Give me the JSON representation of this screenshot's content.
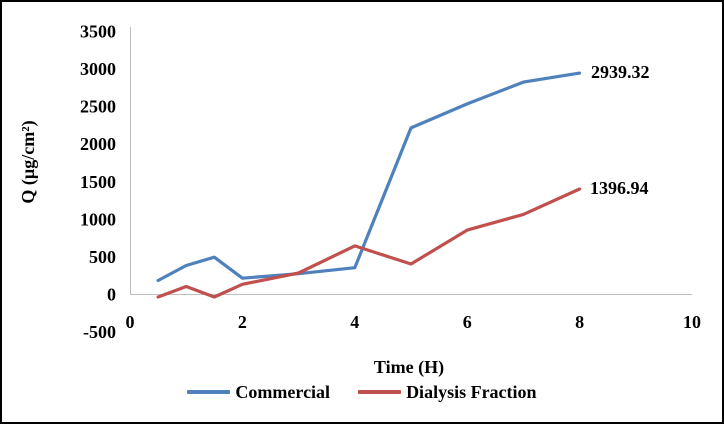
{
  "figure": {
    "background": "#ffffff",
    "border_color": "#000000"
  },
  "chart_data": {
    "type": "line",
    "title": "",
    "xlabel": "Time (H)",
    "ylabel": "Q (µg/cm²)",
    "x": [
      0.5,
      1,
      1.5,
      2,
      3,
      4,
      5,
      6,
      7,
      8
    ],
    "series": [
      {
        "name": "Commercial",
        "color": "#4F81BD",
        "values": [
          180,
          380,
          490,
          210,
          270,
          350,
          2210,
          2530,
          2820,
          2939.32
        ],
        "end_label": "2939.32"
      },
      {
        "name": "Dialysis Fraction",
        "color": "#C0504D",
        "values": [
          -40,
          100,
          -40,
          130,
          280,
          640,
          400,
          850,
          1060,
          1396.94
        ],
        "end_label": "1396.94"
      }
    ],
    "xlim": [
      0,
      10
    ],
    "ylim": [
      -500,
      3500
    ],
    "x_ticks": [
      "0",
      "2",
      "4",
      "6",
      "8",
      "10"
    ],
    "x_tick_values": [
      0,
      2,
      4,
      6,
      8,
      10
    ],
    "y_ticks": [
      "-500",
      "0",
      "500",
      "1000",
      "1500",
      "2000",
      "2500",
      "3000",
      "3500"
    ],
    "y_tick_values": [
      -500,
      0,
      500,
      1000,
      1500,
      2000,
      2500,
      3000,
      3500
    ],
    "grid": false,
    "markers": false,
    "legend_position": "bottom",
    "axis_color": "#BFBFBF",
    "text_color": "#000000"
  }
}
